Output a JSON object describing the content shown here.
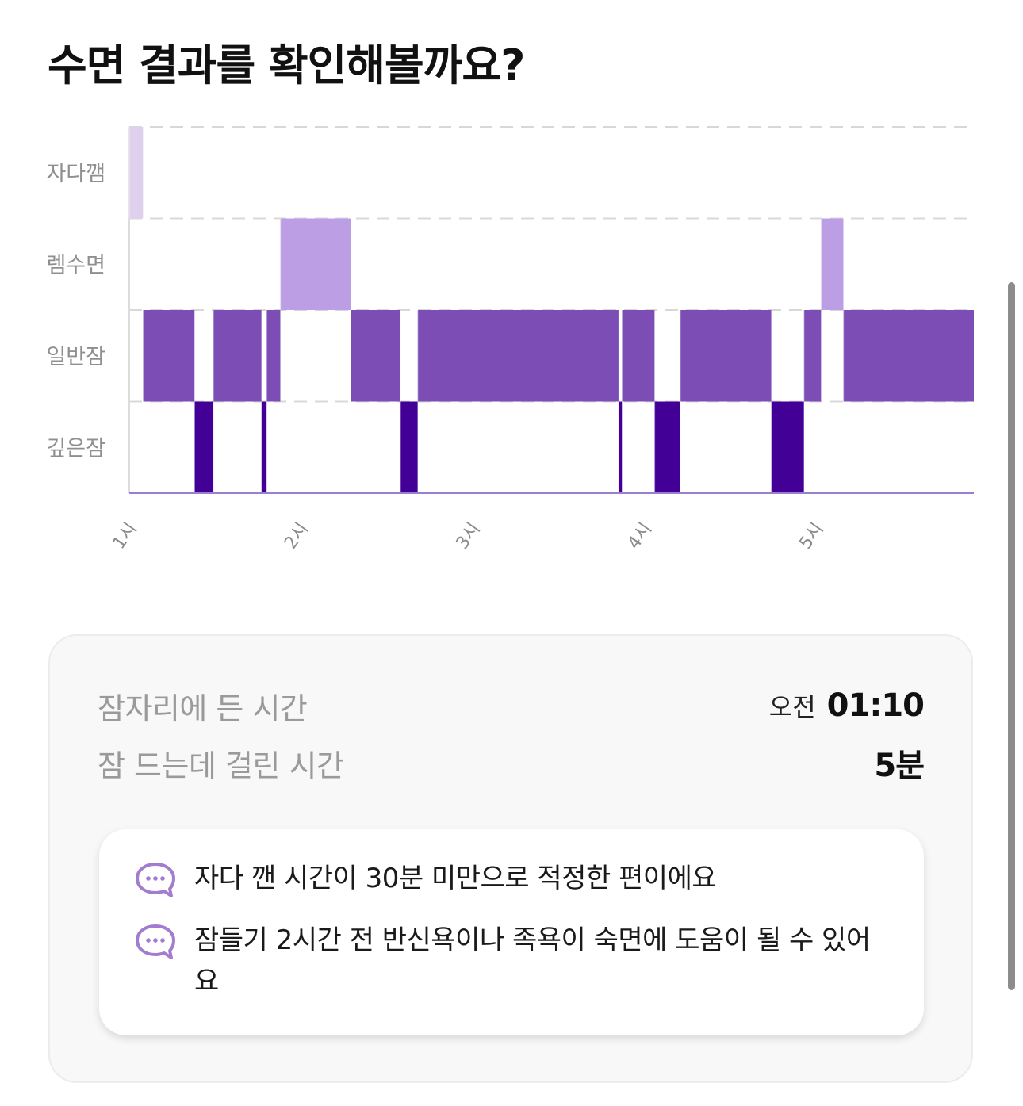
{
  "header": {
    "title": "수면 결과를 확인해볼까요?"
  },
  "chart_data": {
    "type": "timeline",
    "stages": [
      "자다깸",
      "렘수면",
      "일반잠",
      "깊은잠"
    ],
    "x_ticks": [
      {
        "label": "1시",
        "hour": 1.0
      },
      {
        "label": "2시",
        "hour": 2.0
      },
      {
        "label": "3시",
        "hour": 3.0
      },
      {
        "label": "4시",
        "hour": 4.0
      },
      {
        "label": "5시",
        "hour": 5.0
      }
    ],
    "x_range": [
      1.0,
      5.92
    ],
    "colors": {
      "자다깸": "#dfd0ee",
      "렘수면": "#bb9ee4",
      "일반잠": "#7b4db5",
      "깊은잠": "#430096"
    },
    "segments": [
      {
        "stage": "자다깸",
        "start": 1.0,
        "end": 1.08
      },
      {
        "stage": "일반잠",
        "start": 1.08,
        "end": 1.38
      },
      {
        "stage": "깊은잠",
        "start": 1.38,
        "end": 1.49
      },
      {
        "stage": "일반잠",
        "start": 1.49,
        "end": 1.77
      },
      {
        "stage": "깊은잠",
        "start": 1.77,
        "end": 1.8
      },
      {
        "stage": "일반잠",
        "start": 1.8,
        "end": 1.88
      },
      {
        "stage": "렘수면",
        "start": 1.88,
        "end": 2.29
      },
      {
        "stage": "일반잠",
        "start": 2.29,
        "end": 2.58
      },
      {
        "stage": "깊은잠",
        "start": 2.58,
        "end": 2.68
      },
      {
        "stage": "일반잠",
        "start": 2.68,
        "end": 3.85
      },
      {
        "stage": "깊은잠",
        "start": 3.85,
        "end": 3.87
      },
      {
        "stage": "일반잠",
        "start": 3.87,
        "end": 4.06
      },
      {
        "stage": "깊은잠",
        "start": 4.06,
        "end": 4.21
      },
      {
        "stage": "일반잠",
        "start": 4.21,
        "end": 4.74
      },
      {
        "stage": "깊은잠",
        "start": 4.74,
        "end": 4.93
      },
      {
        "stage": "일반잠",
        "start": 4.93,
        "end": 5.03
      },
      {
        "stage": "렘수면",
        "start": 5.03,
        "end": 5.16
      },
      {
        "stage": "일반잠",
        "start": 5.16,
        "end": 5.92
      }
    ]
  },
  "summary": {
    "bedtime_label": "잠자리에 든 시간",
    "bedtime_ampm": "오전",
    "bedtime_value": "01:10",
    "latency_label": "잠 드는데 걸린 시간",
    "latency_value": "5분"
  },
  "tips": [
    {
      "icon": "chat-bubble-icon",
      "text": "자다 깬 시간이 30분 미만으로 적정한 편이에요"
    },
    {
      "icon": "chat-bubble-icon",
      "text": "잠들기 2시간 전 반신욕이나 족욕이 숙면에 도움이 될 수 있어요"
    }
  ],
  "accent_color": "#a17ccf"
}
